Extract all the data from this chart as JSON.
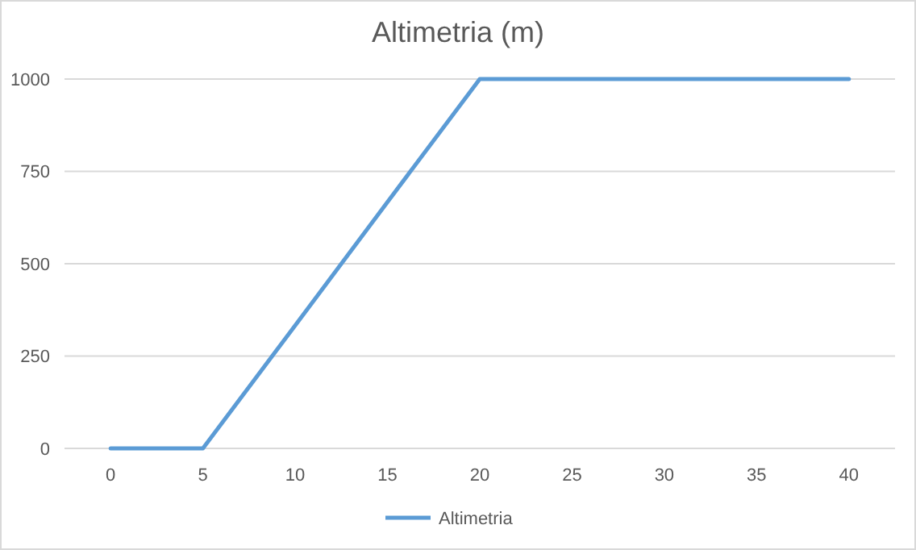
{
  "chart_data": {
    "type": "line",
    "title": "Altimetria (m)",
    "categories": [
      "0",
      "5",
      "10",
      "15",
      "20",
      "25",
      "30",
      "35",
      "40"
    ],
    "series": [
      {
        "name": "Altimetria",
        "color": "#5b9bd5",
        "values": [
          0,
          0,
          333,
          667,
          1000,
          1000,
          1000,
          1000,
          1000
        ]
      }
    ],
    "ylim": [
      0,
      1000
    ],
    "yticks": [
      0,
      250,
      500,
      750,
      1000
    ],
    "grid": "y",
    "legend": "bottom",
    "marker": "none",
    "line_style": "solid"
  }
}
